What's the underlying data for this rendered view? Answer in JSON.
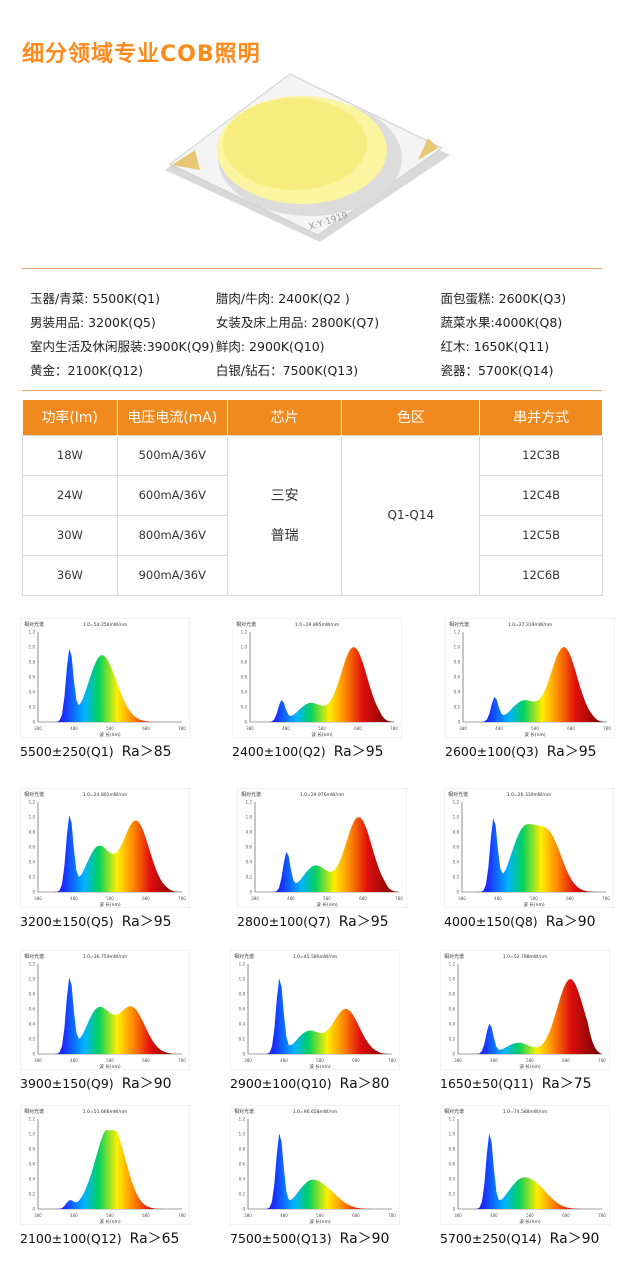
{
  "title": "细分领域专业COB照明",
  "product_label": "X·Y·1919",
  "applications": [
    [
      "玉器/青菜: 5500K(Q1)",
      "腊肉/牛肉: 2400K(Q2 )",
      "面包蛋糕: 2600K(Q3)"
    ],
    [
      "男装用品: 3200K(Q5)",
      "女装及床上用品: 2800K(Q7)",
      "蔬菜水果:4000K(Q8)"
    ],
    [
      "室内生活及休闲服装:3900K(Q9)",
      "鲜肉: 2900K(Q10)",
      "红木: 1650K(Q11)"
    ],
    [
      "黄金：2100K(Q12)",
      "白银/钻石：7500K(Q13)",
      "瓷器：5700K(Q14)"
    ]
  ],
  "table": {
    "headers": [
      "功率(lm)",
      "电压电流(mA)",
      "芯片",
      "色区",
      "串并方式"
    ],
    "power": [
      "18W",
      "24W",
      "30W",
      "36W"
    ],
    "current": [
      "500mA/36V",
      "600mA/36V",
      "800mA/36V",
      "900mA/36V"
    ],
    "chips": [
      "三安",
      "普瑞"
    ],
    "color_zone": "Q1-Q14",
    "config": [
      "12C3B",
      "12C4B",
      "12C5B",
      "12C6B"
    ]
  },
  "spectra": [
    {
      "cct": "5500±250(Q1)",
      "ra": "Ra＞85",
      "header": "1.0=54.256mW/nm"
    },
    {
      "cct": "2400±100(Q2)",
      "ra": "Ra＞95",
      "header": "1.0=29.895mW/nm"
    },
    {
      "cct": "2600±100(Q3)",
      "ra": "Ra＞95",
      "header": "1.0=27.319mW/nm"
    },
    {
      "cct": "3200±150(Q5)",
      "ra": "Ra＞95",
      "header": "1.0=24.801mW/nm"
    },
    {
      "cct": "2800±100(Q7)",
      "ra": "Ra＞95",
      "header": "1.0=29.976mW/nm"
    },
    {
      "cct": "4000±150(Q8)",
      "ra": "Ra＞90",
      "header": "1.0=26.330mW/nm"
    },
    {
      "cct": "3900±150(Q9)",
      "ra": "Ra＞90",
      "header": "1.0=36.759mW/nm"
    },
    {
      "cct": "2900±100(Q10)",
      "ra": "Ra＞80",
      "header": "1.0=45.580mW/nm"
    },
    {
      "cct": "1650±50(Q11)",
      "ra": "Ra＞75",
      "header": "1.0=52.798mW/nm"
    },
    {
      "cct": "2100±100(Q12)",
      "ra": "Ra＞65",
      "header": "1.0=51.666mW/nm"
    },
    {
      "cct": "7500±500(Q13)",
      "ra": "Ra＞90",
      "header": "1.0=96.658mW/nm"
    },
    {
      "cct": "5700±250(Q14)",
      "ra": "Ra＞90",
      "header": "1.0=74.588mW/nm"
    }
  ],
  "spectrum_chart": {
    "title": "相对光谱",
    "xlabel": "波 长(nm)",
    "x_ticks": [
      "380",
      "480",
      "580",
      "680",
      "780"
    ],
    "y_ticks": [
      "0",
      "0.2",
      "0.4",
      "0.6",
      "0.8",
      "1.0",
      "1.2"
    ]
  }
}
